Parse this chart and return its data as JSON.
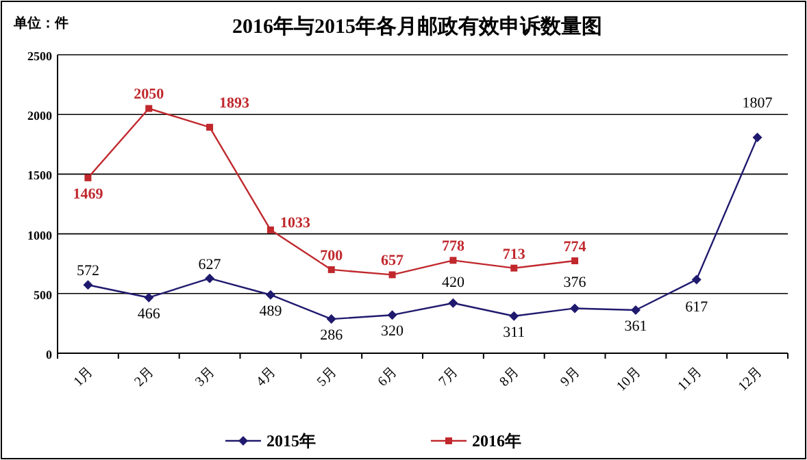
{
  "chart_data": {
    "type": "line",
    "title": "2016年与2015年各月邮政有效申诉数量图",
    "annotations": [
      "单位：件"
    ],
    "categories": [
      "1月",
      "2月",
      "3月",
      "4月",
      "5月",
      "6月",
      "7月",
      "8月",
      "9月",
      "10月",
      "11月",
      "12月"
    ],
    "series": [
      {
        "name": "2015年",
        "color": "#1f1a6e",
        "marker": "diamond",
        "values": [
          572,
          466,
          627,
          489,
          286,
          320,
          420,
          311,
          376,
          361,
          617,
          1807
        ]
      },
      {
        "name": "2016年",
        "color": "#c0282d",
        "marker": "square",
        "values": [
          1469,
          2050,
          1893,
          1033,
          700,
          657,
          778,
          713,
          774,
          null,
          null,
          null
        ]
      }
    ],
    "ylim": [
      0,
      2500
    ],
    "yticks": [
      0,
      500,
      1000,
      1500,
      2000,
      2500
    ],
    "grid": "y",
    "legend": "bottom",
    "data_labels": true
  }
}
